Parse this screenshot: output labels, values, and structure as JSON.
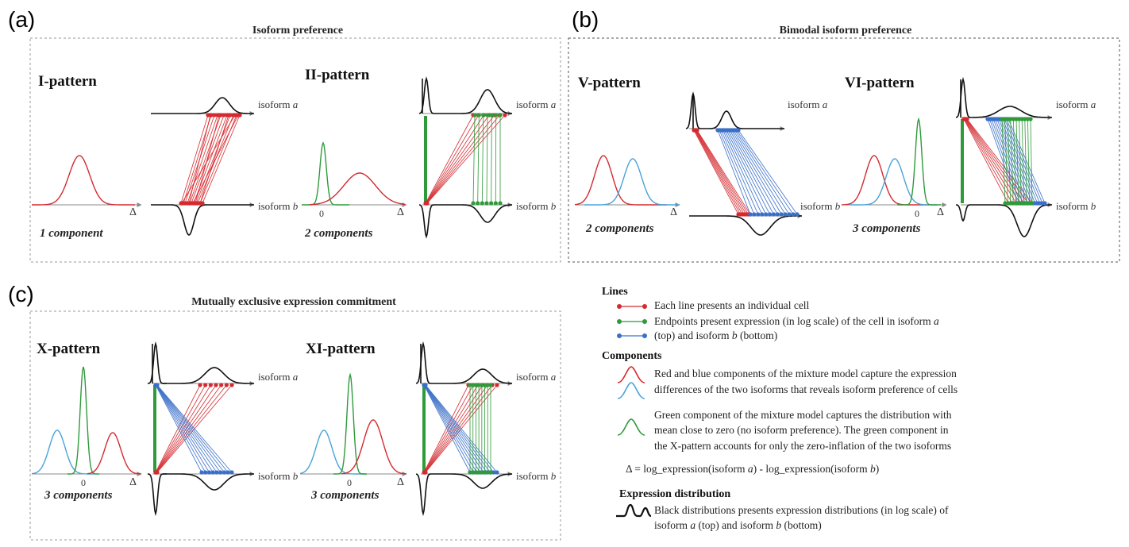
{
  "panels": {
    "a": {
      "letter": "(a)",
      "title": "Isoform preference"
    },
    "b": {
      "letter": "(b)",
      "title": "Bimodal isoform preference"
    },
    "c": {
      "letter": "(c)",
      "title": "Mutually exclusive expression commitment"
    }
  },
  "patterns": {
    "I": {
      "name": "I-pattern",
      "components": "1 component"
    },
    "II": {
      "name": "II-pattern",
      "components": "2 components"
    },
    "V": {
      "name": "V-pattern",
      "components": "2 components"
    },
    "VI": {
      "name": "VI-pattern",
      "components": "3 components"
    },
    "X": {
      "name": "X-pattern",
      "components": "3 components"
    },
    "XI": {
      "name": "XI-pattern",
      "components": "3 components"
    }
  },
  "axis": {
    "isoform_a_word": "isoform ",
    "isoform_a_italic": "a",
    "isoform_b_word": "isoform ",
    "isoform_b_italic": "b",
    "delta": "Δ",
    "zero": "0"
  },
  "colors": {
    "red": "#d42a2f",
    "blue": "#3a6fc9",
    "green": "#2f9a3a",
    "lightblue": "#4aa3d8",
    "black": "#111111",
    "axis": "#888888"
  },
  "legend": {
    "lines_head": "Lines",
    "lines_1": "Each line presents an individual cell",
    "lines_2a": "Endpoints present expression (in log scale) of the cell in isoform ",
    "lines_2a_i": "a",
    "lines_2b": "(top) and isoform ",
    "lines_2b_i": "b",
    "lines_2c": " (bottom)",
    "components_head": "Components",
    "comp_1": "Red and blue components of the mixture model capture the expression",
    "comp_2": "differences of the two isoforms that reveals isoform preference of cells",
    "comp_3": "Green component of the mixture model captures the distribution with",
    "comp_4": "mean close to zero (no isoform preference). The green component in",
    "comp_5": "the X-pattern accounts for only the zero-inflation of the two isoforms",
    "delta_def_1": "Δ =  log_expression(isoform ",
    "delta_def_a": "a",
    "delta_def_2": ") - log_expression(isoform ",
    "delta_def_b": "b",
    "delta_def_3": ")",
    "expr_head": "Expression distribution",
    "expr_1": "Black distributions presents expression distributions (in log scale) of",
    "expr_2a": "isoform ",
    "expr_2a_i": "a",
    "expr_2b": " (top) and isoform ",
    "expr_2b_i": "b",
    "expr_2c": " (bottom)"
  }
}
